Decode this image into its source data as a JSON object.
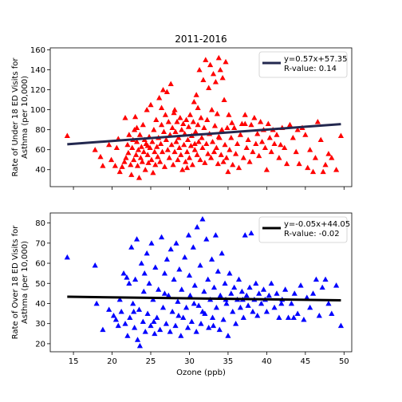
{
  "chart_data": [
    {
      "type": "scatter",
      "title": "2011-2016",
      "xlabel": "",
      "ylabel_lines": [
        "Rate of Under 18 ED Visits for",
        "Asthma (per 10,000)"
      ],
      "xlim": [
        12,
        51
      ],
      "ylim": [
        23,
        162
      ],
      "xticks": [
        15,
        20,
        25,
        30,
        35,
        40,
        45,
        50
      ],
      "yticks": [
        40,
        60,
        80,
        100,
        120,
        140,
        160
      ],
      "show_xtick_labels": false,
      "marker": "triangle",
      "marker_color": "#ff0000",
      "line_color": "#23284f",
      "legend_position": "upper-right",
      "legend_lines": [
        "y=0.57x+57.35",
        "R-value: 0.14"
      ],
      "regression": {
        "slope": 0.57,
        "intercept": 57.35,
        "x_range": [
          14.2,
          49.6
        ]
      },
      "points": [
        [
          14.2,
          74
        ],
        [
          17.8,
          60
        ],
        [
          18.5,
          53
        ],
        [
          18.8,
          44
        ],
        [
          19.6,
          65
        ],
        [
          19.9,
          50
        ],
        [
          20.4,
          44
        ],
        [
          20.6,
          62
        ],
        [
          20.8,
          71
        ],
        [
          21.0,
          38
        ],
        [
          21.3,
          43
        ],
        [
          21.6,
          48
        ],
        [
          21.7,
          92
        ],
        [
          21.8,
          52
        ],
        [
          22.0,
          65
        ],
        [
          22.1,
          57
        ],
        [
          22.2,
          75
        ],
        [
          22.4,
          45
        ],
        [
          22.5,
          35
        ],
        [
          22.6,
          62
        ],
        [
          22.7,
          70
        ],
        [
          22.8,
          50
        ],
        [
          22.9,
          80
        ],
        [
          23.0,
          93
        ],
        [
          23.1,
          55
        ],
        [
          23.2,
          68
        ],
        [
          23.3,
          44
        ],
        [
          23.4,
          60
        ],
        [
          23.5,
          32
        ],
        [
          23.6,
          75
        ],
        [
          23.7,
          52
        ],
        [
          23.8,
          63
        ],
        [
          23.9,
          48
        ],
        [
          24.0,
          85
        ],
        [
          24.1,
          58
        ],
        [
          24.2,
          70
        ],
        [
          24.3,
          40
        ],
        [
          24.4,
          66
        ],
        [
          24.5,
          100
        ],
        [
          24.6,
          55
        ],
        [
          24.7,
          47
        ],
        [
          24.8,
          73
        ],
        [
          24.9,
          62
        ],
        [
          25.0,
          105
        ],
        [
          25.1,
          50
        ],
        [
          25.2,
          68
        ],
        [
          25.3,
          37
        ],
        [
          25.4,
          80
        ],
        [
          25.5,
          58
        ],
        [
          25.6,
          45
        ],
        [
          25.7,
          90
        ],
        [
          25.8,
          63
        ],
        [
          25.9,
          53
        ],
        [
          26.0,
          72
        ],
        [
          26.1,
          112
        ],
        [
          26.2,
          48
        ],
        [
          26.3,
          66
        ],
        [
          26.4,
          85
        ],
        [
          26.5,
          58
        ],
        [
          26.6,
          120
        ],
        [
          26.7,
          78
        ],
        [
          26.8,
          43
        ],
        [
          26.9,
          95
        ],
        [
          27.0,
          70
        ],
        [
          27.1,
          118
        ],
        [
          27.2,
          60
        ],
        [
          27.3,
          88
        ],
        [
          27.4,
          52
        ],
        [
          27.5,
          75
        ],
        [
          27.6,
          126
        ],
        [
          27.7,
          65
        ],
        [
          27.8,
          82
        ],
        [
          27.9,
          45
        ],
        [
          28.0,
          97
        ],
        [
          28.1,
          58
        ],
        [
          28.2,
          78
        ],
        [
          28.3,
          68
        ],
        [
          28.4,
          88
        ],
        [
          28.5,
          50
        ],
        [
          28.6,
          72
        ],
        [
          28.7,
          62
        ],
        [
          28.8,
          92
        ],
        [
          28.9,
          55
        ],
        [
          29.0,
          80
        ],
        [
          29.1,
          40
        ],
        [
          29.2,
          86
        ],
        [
          29.3,
          65
        ],
        [
          29.4,
          76
        ],
        [
          29.5,
          48
        ],
        [
          29.6,
          90
        ],
        [
          29.7,
          58
        ],
        [
          29.8,
          70
        ],
        [
          29.9,
          83
        ],
        [
          30.0,
          52
        ],
        [
          30.1,
          95
        ],
        [
          30.2,
          64
        ],
        [
          30.3,
          74
        ],
        [
          30.4,
          45
        ],
        [
          30.5,
          88
        ],
        [
          30.6,
          108
        ],
        [
          30.7,
          60
        ],
        [
          30.8,
          78
        ],
        [
          30.9,
          115
        ],
        [
          31.0,
          55
        ],
        [
          31.1,
          85
        ],
        [
          31.2,
          68
        ],
        [
          31.3,
          140
        ],
        [
          31.4,
          50
        ],
        [
          31.5,
          92
        ],
        [
          31.6,
          72
        ],
        [
          31.7,
          62
        ],
        [
          31.8,
          130
        ],
        [
          31.9,
          82
        ],
        [
          32.0,
          47
        ],
        [
          32.1,
          150
        ],
        [
          32.2,
          66
        ],
        [
          32.3,
          90
        ],
        [
          32.4,
          56
        ],
        [
          32.5,
          122
        ],
        [
          32.6,
          76
        ],
        [
          32.7,
          145
        ],
        [
          32.8,
          52
        ],
        [
          32.9,
          100
        ],
        [
          33.0,
          68
        ],
        [
          33.1,
          136
        ],
        [
          33.2,
          58
        ],
        [
          33.3,
          84
        ],
        [
          33.4,
          128
        ],
        [
          33.5,
          62
        ],
        [
          33.6,
          96
        ],
        [
          33.7,
          46
        ],
        [
          33.8,
          152
        ],
        [
          33.9,
          72
        ],
        [
          34.0,
          140
        ],
        [
          34.1,
          55
        ],
        [
          34.2,
          80
        ],
        [
          34.3,
          132
        ],
        [
          34.4,
          48
        ],
        [
          34.5,
          110
        ],
        [
          34.6,
          65
        ],
        [
          34.7,
          148
        ],
        [
          34.8,
          52
        ],
        [
          34.9,
          82
        ],
        [
          35.0,
          38
        ],
        [
          35.1,
          95
        ],
        [
          35.2,
          60
        ],
        [
          35.4,
          72
        ],
        [
          35.6,
          45
        ],
        [
          35.8,
          82
        ],
        [
          36.0,
          56
        ],
        [
          36.2,
          66
        ],
        [
          36.4,
          42
        ],
        [
          36.6,
          75
        ],
        [
          36.8,
          86
        ],
        [
          37.0,
          52
        ],
        [
          37.2,
          95
        ],
        [
          37.4,
          62
        ],
        [
          37.6,
          70
        ],
        [
          37.8,
          48
        ],
        [
          38.0,
          85
        ],
        [
          38.2,
          58
        ],
        [
          38.4,
          92
        ],
        [
          38.6,
          66
        ],
        [
          38.8,
          76
        ],
        [
          39.0,
          54
        ],
        [
          39.2,
          88
        ],
        [
          39.4,
          68
        ],
        [
          39.6,
          80
        ],
        [
          39.8,
          62
        ],
        [
          40.0,
          40
        ],
        [
          40.2,
          86
        ],
        [
          40.4,
          72
        ],
        [
          40.6,
          58
        ],
        [
          40.8,
          80
        ],
        [
          41.0,
          66
        ],
        [
          41.3,
          75
        ],
        [
          41.6,
          52
        ],
        [
          42.0,
          82
        ],
        [
          42.3,
          62
        ],
        [
          42.6,
          46
        ],
        [
          43.0,
          85
        ],
        [
          43.4,
          72
        ],
        [
          43.8,
          58
        ],
        [
          44.2,
          46
        ],
        [
          44.6,
          82
        ],
        [
          45.0,
          75
        ],
        [
          45.3,
          42
        ],
        [
          45.6,
          60
        ],
        [
          46.0,
          38
        ],
        [
          46.3,
          52
        ],
        [
          46.6,
          88
        ],
        [
          47.0,
          70
        ],
        [
          47.3,
          38
        ],
        [
          47.6,
          45
        ],
        [
          48.0,
          56
        ],
        [
          48.4,
          52
        ],
        [
          49.0,
          40
        ],
        [
          49.6,
          74
        ],
        [
          26.4,
          102
        ],
        [
          31.1,
          102
        ],
        [
          37.2,
          86
        ],
        [
          29.7,
          42
        ],
        [
          23.2,
          82
        ],
        [
          35.5,
          87
        ],
        [
          24.6,
          64
        ],
        [
          30.7,
          66
        ],
        [
          33.8,
          73
        ],
        [
          28.1,
          100
        ],
        [
          41.8,
          65
        ],
        [
          44.0,
          80
        ]
      ]
    },
    {
      "type": "scatter",
      "title": "",
      "xlabel": "Ozone (ppb)",
      "ylabel_lines": [
        "Rate of Over 18 ED Visits for",
        "Asthma (per 10,000)"
      ],
      "xlim": [
        12,
        51
      ],
      "ylim": [
        16,
        85
      ],
      "xticks": [
        15,
        20,
        25,
        30,
        35,
        40,
        45,
        50
      ],
      "yticks": [
        20,
        30,
        40,
        50,
        60,
        70,
        80
      ],
      "show_xtick_labels": true,
      "marker": "triangle",
      "marker_color": "#0000ff",
      "line_color": "#000000",
      "legend_position": "upper-right",
      "legend_lines": [
        "y=-0.05x+44.05",
        "R-value: -0.02"
      ],
      "regression": {
        "slope": -0.05,
        "intercept": 44.05,
        "x_range": [
          14.2,
          49.6
        ]
      },
      "points": [
        [
          14.2,
          63
        ],
        [
          17.8,
          59
        ],
        [
          18.0,
          40
        ],
        [
          18.8,
          27
        ],
        [
          19.6,
          37
        ],
        [
          20.2,
          34
        ],
        [
          20.5,
          32
        ],
        [
          20.8,
          29
        ],
        [
          21.0,
          42
        ],
        [
          21.2,
          36
        ],
        [
          21.5,
          55
        ],
        [
          21.7,
          30
        ],
        [
          21.9,
          53
        ],
        [
          22.0,
          24
        ],
        [
          22.2,
          50
        ],
        [
          22.3,
          33
        ],
        [
          22.5,
          68
        ],
        [
          22.7,
          40
        ],
        [
          22.9,
          28
        ],
        [
          23.0,
          52
        ],
        [
          23.2,
          72
        ],
        [
          23.3,
          22
        ],
        [
          23.5,
          37
        ],
        [
          23.6,
          19
        ],
        [
          23.8,
          60
        ],
        [
          24.0,
          31
        ],
        [
          24.1,
          46
        ],
        [
          24.3,
          26
        ],
        [
          24.5,
          65
        ],
        [
          24.6,
          35
        ],
        [
          24.8,
          50
        ],
        [
          25.0,
          29
        ],
        [
          25.1,
          70
        ],
        [
          25.3,
          42
        ],
        [
          25.5,
          25
        ],
        [
          25.6,
          58
        ],
        [
          25.8,
          33
        ],
        [
          26.0,
          47
        ],
        [
          26.2,
          27
        ],
        [
          26.4,
          73
        ],
        [
          26.6,
          38
        ],
        [
          26.8,
          55
        ],
        [
          27.0,
          30
        ],
        [
          27.1,
          62
        ],
        [
          27.3,
          44
        ],
        [
          27.5,
          26
        ],
        [
          27.6,
          67
        ],
        [
          27.8,
          36
        ],
        [
          28.0,
          52
        ],
        [
          28.2,
          29
        ],
        [
          28.3,
          70
        ],
        [
          28.5,
          41
        ],
        [
          28.7,
          57
        ],
        [
          28.9,
          24
        ],
        [
          29.0,
          47
        ],
        [
          29.2,
          33
        ],
        [
          29.4,
          63
        ],
        [
          29.6,
          38
        ],
        [
          29.8,
          28
        ],
        [
          30.0,
          54
        ],
        [
          30.1,
          44
        ],
        [
          30.3,
          31
        ],
        [
          30.5,
          68
        ],
        [
          30.7,
          49
        ],
        [
          30.9,
          26
        ],
        [
          31.0,
          78
        ],
        [
          31.2,
          39
        ],
        [
          31.4,
          59
        ],
        [
          31.5,
          30
        ],
        [
          31.7,
          82
        ],
        [
          31.9,
          46
        ],
        [
          32.0,
          35
        ],
        [
          32.2,
          72
        ],
        [
          32.4,
          52
        ],
        [
          32.5,
          28
        ],
        [
          32.7,
          42
        ],
        [
          32.9,
          62
        ],
        [
          33.0,
          33
        ],
        [
          33.2,
          48
        ],
        [
          33.4,
          74
        ],
        [
          33.5,
          38
        ],
        [
          33.7,
          56
        ],
        [
          33.9,
          27
        ],
        [
          34.0,
          44
        ],
        [
          34.2,
          65
        ],
        [
          34.4,
          32
        ],
        [
          34.6,
          50
        ],
        [
          34.8,
          40
        ],
        [
          35.0,
          24
        ],
        [
          35.2,
          55
        ],
        [
          35.4,
          45
        ],
        [
          35.6,
          36
        ],
        [
          35.8,
          48
        ],
        [
          36.0,
          30
        ],
        [
          36.2,
          42
        ],
        [
          36.4,
          52
        ],
        [
          36.6,
          38
        ],
        [
          36.8,
          46
        ],
        [
          37.0,
          33
        ],
        [
          37.2,
          74
        ],
        [
          37.4,
          44
        ],
        [
          37.6,
          39
        ],
        [
          37.8,
          48
        ],
        [
          38.0,
          75
        ],
        [
          38.2,
          36
        ],
        [
          38.4,
          42
        ],
        [
          38.6,
          50
        ],
        [
          38.8,
          34
        ],
        [
          39.0,
          45
        ],
        [
          39.3,
          40
        ],
        [
          39.6,
          47
        ],
        [
          40.0,
          36
        ],
        [
          40.3,
          44
        ],
        [
          40.6,
          50
        ],
        [
          41.0,
          38
        ],
        [
          41.3,
          45
        ],
        [
          41.6,
          33
        ],
        [
          42.0,
          42
        ],
        [
          42.4,
          47
        ],
        [
          42.8,
          33
        ],
        [
          43.2,
          40
        ],
        [
          43.6,
          45
        ],
        [
          44.0,
          35
        ],
        [
          44.4,
          49
        ],
        [
          44.8,
          32
        ],
        [
          45.2,
          43
        ],
        [
          45.6,
          38
        ],
        [
          46.0,
          45
        ],
        [
          46.4,
          52
        ],
        [
          46.8,
          34
        ],
        [
          47.2,
          48
        ],
        [
          47.6,
          52
        ],
        [
          48.0,
          40
        ],
        [
          48.4,
          35
        ],
        [
          49.0,
          49
        ],
        [
          49.6,
          29
        ],
        [
          24.2,
          55
        ],
        [
          29.9,
          74
        ],
        [
          34.7,
          42
        ],
        [
          26.8,
          45
        ],
        [
          31.7,
          36
        ],
        [
          39.8,
          42
        ],
        [
          43.5,
          33
        ],
        [
          22.8,
          36
        ],
        [
          36.9,
          42
        ],
        [
          28.6,
          34
        ],
        [
          33.1,
          29
        ],
        [
          25.4,
          31
        ],
        [
          30.6,
          40
        ],
        [
          41.9,
          40
        ]
      ]
    }
  ]
}
